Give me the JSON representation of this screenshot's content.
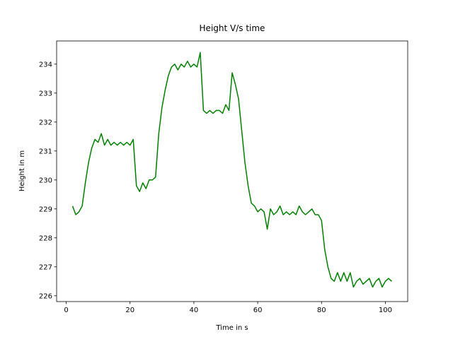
{
  "chart_data": {
    "type": "line",
    "title": "Height V/s time",
    "xlabel": "Time in s",
    "ylabel": "Height in m",
    "x": [
      2,
      3,
      4,
      5,
      6,
      7,
      8,
      9,
      10,
      11,
      12,
      13,
      14,
      15,
      16,
      17,
      18,
      19,
      20,
      21,
      22,
      23,
      24,
      25,
      26,
      27,
      28,
      29,
      30,
      31,
      32,
      33,
      34,
      35,
      36,
      37,
      38,
      39,
      40,
      41,
      42,
      43,
      44,
      45,
      46,
      47,
      48,
      49,
      50,
      51,
      52,
      53,
      54,
      55,
      56,
      57,
      58,
      59,
      60,
      61,
      62,
      63,
      64,
      65,
      66,
      67,
      68,
      69,
      70,
      71,
      72,
      73,
      74,
      75,
      76,
      77,
      78,
      79,
      80,
      81,
      82,
      83,
      84,
      85,
      86,
      87,
      88,
      89,
      90,
      91,
      92,
      93,
      94,
      95,
      96,
      97,
      98,
      99,
      100,
      101,
      102
    ],
    "series": [
      {
        "name": "Height",
        "color": "#008000",
        "values": [
          229.1,
          228.8,
          228.9,
          229.1,
          229.9,
          230.6,
          231.1,
          231.4,
          231.3,
          231.6,
          231.2,
          231.4,
          231.2,
          231.3,
          231.2,
          231.3,
          231.2,
          231.3,
          231.2,
          231.4,
          229.8,
          229.6,
          229.9,
          229.7,
          230.0,
          230.0,
          230.1,
          231.6,
          232.5,
          233.1,
          233.6,
          233.9,
          234.0,
          233.8,
          234.0,
          233.9,
          234.1,
          233.9,
          234.0,
          233.9,
          234.4,
          232.4,
          232.3,
          232.4,
          232.3,
          232.4,
          232.4,
          232.3,
          232.6,
          232.4,
          233.7,
          233.3,
          232.8,
          231.7,
          230.6,
          229.8,
          229.2,
          229.1,
          228.9,
          229.0,
          228.9,
          228.3,
          229.0,
          228.8,
          228.9,
          229.1,
          228.8,
          228.9,
          228.8,
          228.9,
          228.8,
          229.1,
          228.9,
          228.8,
          228.9,
          229.0,
          228.8,
          228.8,
          228.6,
          227.6,
          227.0,
          226.6,
          226.5,
          226.8,
          226.5,
          226.8,
          226.5,
          226.8,
          226.3,
          226.5,
          226.6,
          226.4,
          226.5,
          226.6,
          226.3,
          226.5,
          226.6,
          226.3,
          226.5,
          226.6,
          226.5
        ]
      }
    ],
    "xlim": [
      -3,
      107
    ],
    "ylim": [
      225.8,
      234.8
    ],
    "xticks": [
      0,
      20,
      40,
      60,
      80,
      100
    ],
    "yticks": [
      226,
      227,
      228,
      229,
      230,
      231,
      232,
      233,
      234
    ]
  }
}
